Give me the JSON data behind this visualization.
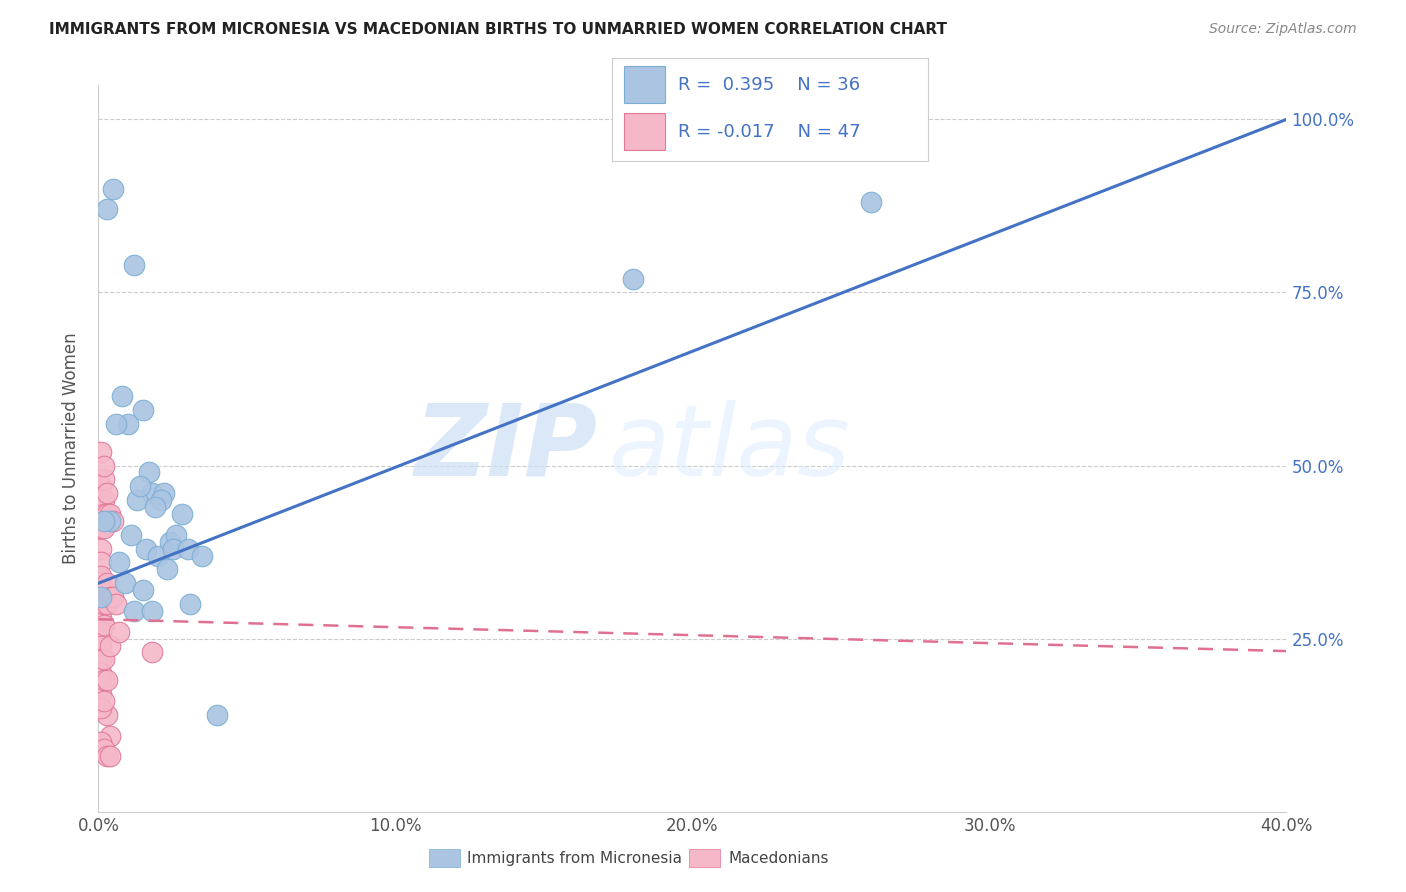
{
  "title": "IMMIGRANTS FROM MICRONESIA VS MACEDONIAN BIRTHS TO UNMARRIED WOMEN CORRELATION CHART",
  "source": "Source: ZipAtlas.com",
  "ylabel": "Births to Unmarried Women",
  "watermark_zip": "ZIP",
  "watermark_atlas": "atlas",
  "blue_R": 0.395,
  "blue_N": 36,
  "pink_R": -0.017,
  "pink_N": 47,
  "legend_label_blue": "Immigrants from Micronesia",
  "legend_label_pink": "Macedonians",
  "xlim": [
    0.0,
    0.4
  ],
  "ylim": [
    0.0,
    1.05
  ],
  "xtick_labels": [
    "0.0%",
    "10.0%",
    "20.0%",
    "30.0%",
    "40.0%"
  ],
  "xtick_vals": [
    0.0,
    0.1,
    0.2,
    0.3,
    0.4
  ],
  "ytick_labels_right": [
    "100.0%",
    "75.0%",
    "50.0%",
    "25.0%"
  ],
  "ytick_vals": [
    1.0,
    0.75,
    0.5,
    0.25
  ],
  "blue_color": "#aac4e2",
  "blue_edge": "#7aaed4",
  "blue_line_color": "#4472C4",
  "pink_color": "#f5b8c8",
  "pink_edge": "#e07898",
  "pink_line_color": "#e07090",
  "grid_color": "#cccccc",
  "blue_line_x0": 0.0,
  "blue_line_y0": 0.33,
  "blue_line_x1": 0.4,
  "blue_line_y1": 1.0,
  "pink_line_x0": 0.0,
  "pink_line_y0": 0.278,
  "pink_line_x1": 0.4,
  "pink_line_y1": 0.232,
  "blue_scatter_x": [
    0.005,
    0.003,
    0.012,
    0.008,
    0.01,
    0.006,
    0.015,
    0.018,
    0.022,
    0.004,
    0.009,
    0.007,
    0.013,
    0.016,
    0.02,
    0.024,
    0.002,
    0.011,
    0.017,
    0.021,
    0.014,
    0.019,
    0.026,
    0.001,
    0.023,
    0.025,
    0.03,
    0.035,
    0.028,
    0.031,
    0.015,
    0.012,
    0.018,
    0.26,
    0.18,
    0.04
  ],
  "blue_scatter_y": [
    0.9,
    0.87,
    0.79,
    0.6,
    0.56,
    0.56,
    0.58,
    0.46,
    0.46,
    0.42,
    0.33,
    0.36,
    0.45,
    0.38,
    0.37,
    0.39,
    0.42,
    0.4,
    0.49,
    0.45,
    0.47,
    0.44,
    0.4,
    0.31,
    0.35,
    0.38,
    0.38,
    0.37,
    0.43,
    0.3,
    0.32,
    0.29,
    0.29,
    0.88,
    0.77,
    0.14
  ],
  "pink_scatter_x": [
    0.001,
    0.001,
    0.001,
    0.001,
    0.001,
    0.001,
    0.001,
    0.001,
    0.001,
    0.001,
    0.001,
    0.001,
    0.001,
    0.001,
    0.001,
    0.002,
    0.002,
    0.002,
    0.002,
    0.002,
    0.002,
    0.002,
    0.002,
    0.002,
    0.003,
    0.003,
    0.003,
    0.003,
    0.003,
    0.004,
    0.004,
    0.004,
    0.005,
    0.005,
    0.006,
    0.007,
    0.001,
    0.002,
    0.003,
    0.004,
    0.001,
    0.002,
    0.003,
    0.004,
    0.001,
    0.002,
    0.018
  ],
  "pink_scatter_y": [
    0.47,
    0.44,
    0.43,
    0.41,
    0.38,
    0.36,
    0.34,
    0.32,
    0.3,
    0.28,
    0.26,
    0.24,
    0.22,
    0.2,
    0.17,
    0.48,
    0.45,
    0.43,
    0.41,
    0.32,
    0.3,
    0.27,
    0.22,
    0.19,
    0.46,
    0.43,
    0.33,
    0.3,
    0.19,
    0.43,
    0.31,
    0.24,
    0.42,
    0.31,
    0.3,
    0.26,
    0.52,
    0.5,
    0.14,
    0.11,
    0.1,
    0.09,
    0.08,
    0.08,
    0.15,
    0.16,
    0.23
  ]
}
